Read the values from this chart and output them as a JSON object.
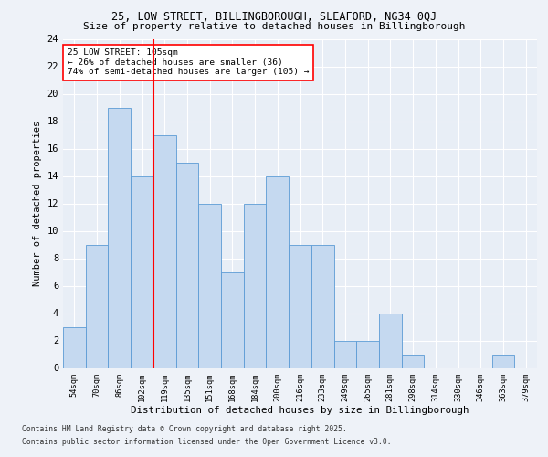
{
  "title1": "25, LOW STREET, BILLINGBOROUGH, SLEAFORD, NG34 0QJ",
  "title2": "Size of property relative to detached houses in Billingborough",
  "xlabel": "Distribution of detached houses by size in Billingborough",
  "ylabel": "Number of detached properties",
  "categories": [
    "54sqm",
    "70sqm",
    "86sqm",
    "102sqm",
    "119sqm",
    "135sqm",
    "151sqm",
    "168sqm",
    "184sqm",
    "200sqm",
    "216sqm",
    "233sqm",
    "249sqm",
    "265sqm",
    "281sqm",
    "298sqm",
    "314sqm",
    "330sqm",
    "346sqm",
    "363sqm",
    "379sqm"
  ],
  "values": [
    3,
    9,
    19,
    14,
    17,
    15,
    12,
    7,
    12,
    14,
    9,
    9,
    2,
    2,
    4,
    1,
    0,
    0,
    0,
    1,
    0
  ],
  "bar_color": "#c5d9f0",
  "bar_edge_color": "#5b9bd5",
  "red_line_index": 3,
  "annotation_title": "25 LOW STREET: 105sqm",
  "annotation_line1": "← 26% of detached houses are smaller (36)",
  "annotation_line2": "74% of semi-detached houses are larger (105) →",
  "ylim": [
    0,
    24
  ],
  "yticks": [
    0,
    2,
    4,
    6,
    8,
    10,
    12,
    14,
    16,
    18,
    20,
    22,
    24
  ],
  "footer1": "Contains HM Land Registry data © Crown copyright and database right 2025.",
  "footer2": "Contains public sector information licensed under the Open Government Licence v3.0.",
  "bg_color": "#eef2f8",
  "plot_bg_color": "#e8eef6"
}
